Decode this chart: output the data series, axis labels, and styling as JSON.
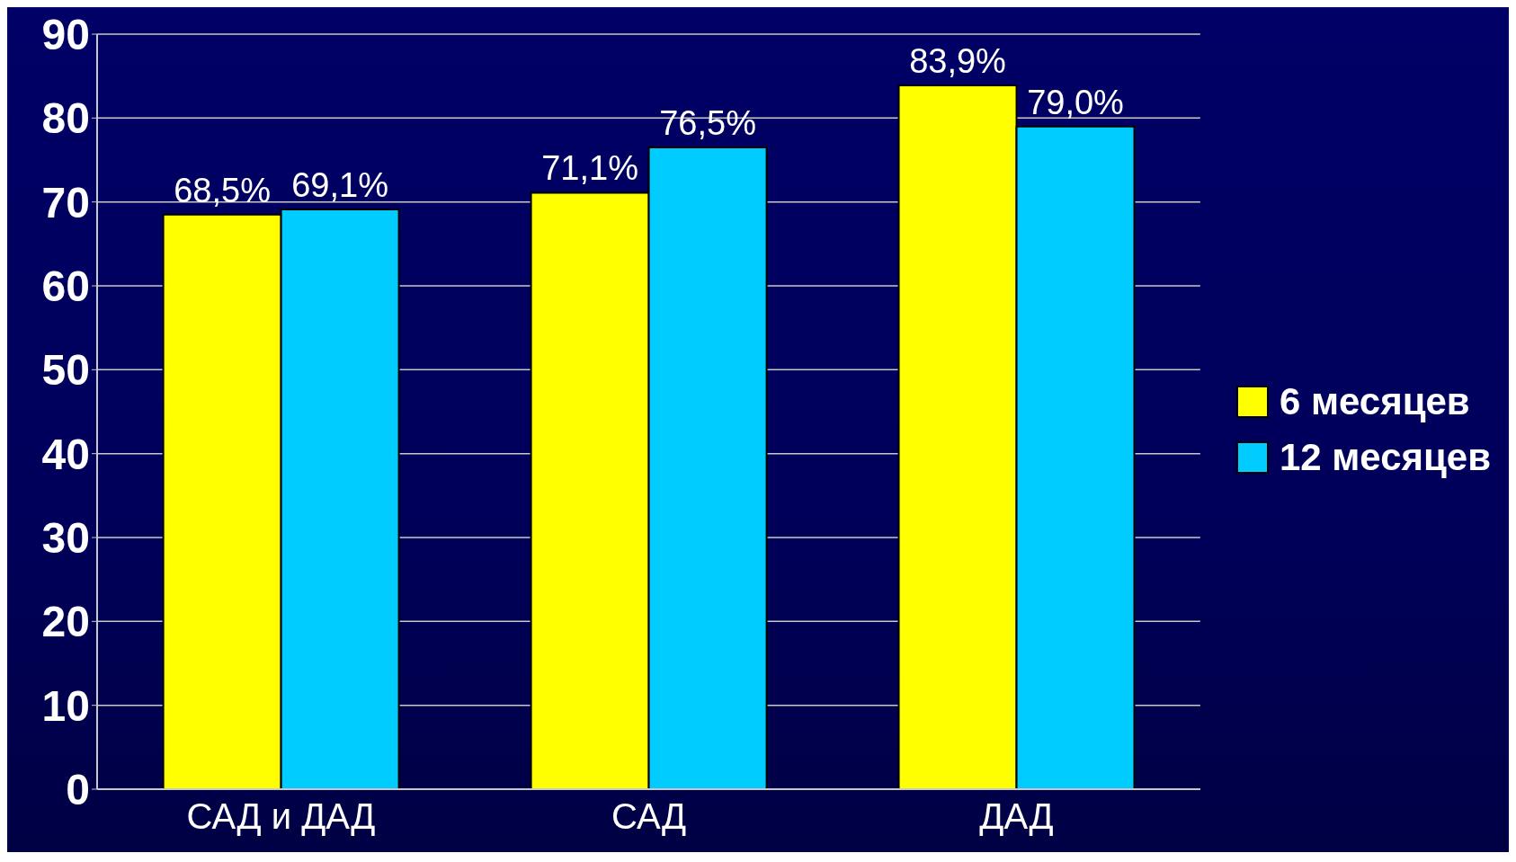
{
  "chart_data": {
    "type": "bar",
    "categories": [
      "САД и ДАД",
      "САД",
      "ДАД"
    ],
    "series": [
      {
        "name": "6 месяцев",
        "color": "#ffff00",
        "values": [
          68.5,
          71.1,
          83.9
        ],
        "value_labels": [
          "68,5%",
          "71,1%",
          "83,9%"
        ]
      },
      {
        "name": "12 месяцев",
        "color": "#00ccff",
        "values": [
          69.1,
          76.5,
          79.0
        ],
        "value_labels": [
          "69,1%",
          "76,5%",
          "79,0%"
        ]
      }
    ],
    "ylim": [
      0,
      90
    ],
    "yticks": [
      0,
      10,
      20,
      30,
      40,
      50,
      60,
      70,
      80,
      90
    ],
    "grid": "y",
    "legend": "right"
  }
}
